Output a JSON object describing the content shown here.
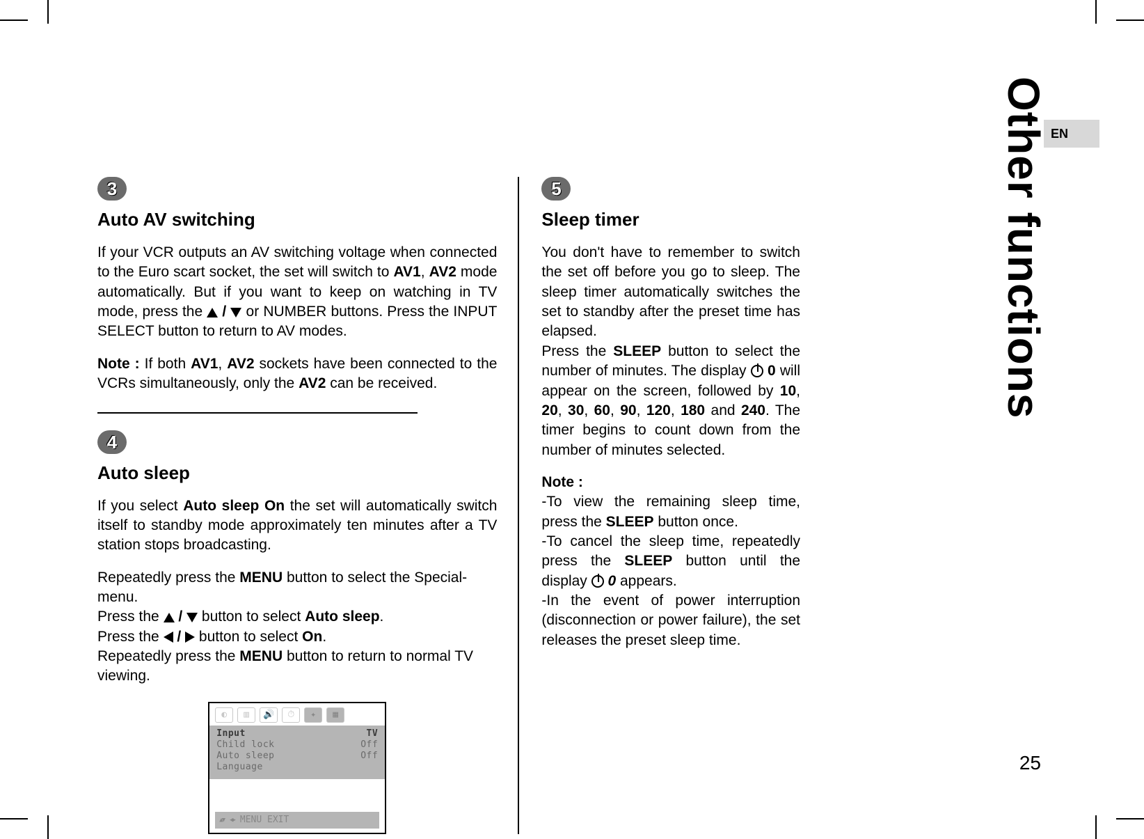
{
  "page_number": "25",
  "lang_tab": "EN",
  "side_title": "Other functions",
  "left": {
    "step3_num": "3",
    "step3_title": "Auto AV switching",
    "step3_p1a": "If your VCR outputs an AV switching voltage when connected to the Euro scart socket, the set will switch to ",
    "step3_p1b": " mode automatically. But if you want to keep on watching in TV mode, press the ",
    "step3_p1c": " or NUMBER buttons. Press the INPUT SELECT button to return to AV modes.",
    "av1": "AV1",
    "av2": "AV2",
    "step3_note_label": "Note :",
    "step3_note_a": " If both ",
    "step3_note_b": " sockets have been connected to the VCRs simultaneously, only the ",
    "step3_note_c": " can be received.",
    "step4_num": "4",
    "step4_title": "Auto sleep",
    "step4_p1a": "If you select ",
    "step4_autosleep_on": "Auto sleep On",
    "step4_p1b": " the set will automatically switch itself to stand­by mode approximately ten minutes after a TV station stops broadcasting.",
    "step4_l1a": "Repeatedly press the ",
    "step4_l1b": " button to select the Special-",
    "step4_l1c": "menu.",
    "menu": "MENU",
    "step4_l2a": "Press the ",
    "step4_l2b": " button to select ",
    "step4_autosleep": "Auto sleep",
    "step4_l3b": " button to select ",
    "on": "On",
    "step4_l4a": "Repeatedly press the ",
    "step4_l4b": " button to return to normal TV viewing."
  },
  "right": {
    "step5_num": "5",
    "step5_title": "Sleep timer",
    "p1a": "You don't have to remember to switch the set off before you go to sleep. The sleep timer automatically switches the set to standby after the preset time has elapsed.",
    "p1b_a": "Press the ",
    "p1b_b": " button to select the num­ber of minutes. The display ",
    "sleep": "SLEEP",
    "zero": "0",
    "p1b_c": " will appear on the screen, followed by ",
    "nums": [
      "10",
      "20",
      "30",
      "60",
      "90",
      "120",
      "180",
      "240"
    ],
    "p1b_d": ". The timer begins to count down from the number of minutes selected.",
    "and": " and ",
    "note_label": "Note :",
    "n1a": "-To view the remaining sleep time, press the ",
    "n1b": " button once.",
    "n2a": "-To cancel the sleep time, repeatedly press the ",
    "n2b": " button until the display ",
    "n2c": " appears.",
    "zero_it": "0",
    "n3": "-In the event of power interruption (discon­nection or power failure), the set releases the preset sleep time."
  },
  "osd": {
    "rows": [
      {
        "label": "Input",
        "value": "TV",
        "sel": true
      },
      {
        "label": "Child lock",
        "value": "Off",
        "sel": false
      },
      {
        "label": "Auto sleep",
        "value": "Off",
        "sel": false
      },
      {
        "label": "Language",
        "value": "",
        "sel": false
      }
    ],
    "footer": "MENU EXIT"
  }
}
